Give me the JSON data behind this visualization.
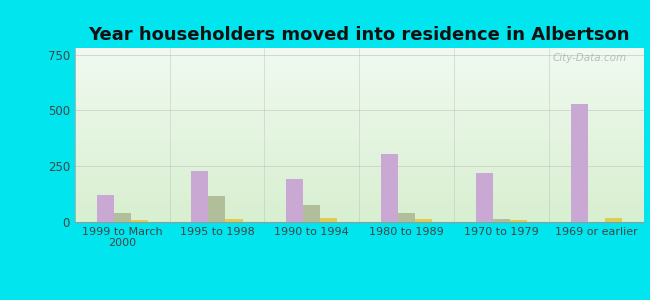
{
  "title": "Year householders moved into residence in Albertson",
  "categories": [
    "1999 to March\n2000",
    "1995 to 1998",
    "1990 to 1994",
    "1980 to 1989",
    "1970 to 1979",
    "1969 or earlier"
  ],
  "series": {
    "White Non-Hispanic": [
      120,
      230,
      195,
      305,
      220,
      530
    ],
    "Asian": [
      42,
      115,
      75,
      42,
      12,
      0
    ],
    "Hispanic or Latino": [
      8,
      12,
      18,
      12,
      8,
      20
    ]
  },
  "colors": {
    "White Non-Hispanic": "#c9a8d4",
    "Asian": "#b0be9a",
    "Hispanic or Latino": "#e0cc55"
  },
  "ylim": [
    0,
    780
  ],
  "yticks": [
    0,
    250,
    500,
    750
  ],
  "outer_bg": "#00e5ee",
  "plot_bg_top": "#d8efd0",
  "plot_bg_bottom": "#f0faf0",
  "watermark": "City-Data.com",
  "bar_width": 0.18,
  "title_fontsize": 13,
  "legend_fontsize": 8.5
}
